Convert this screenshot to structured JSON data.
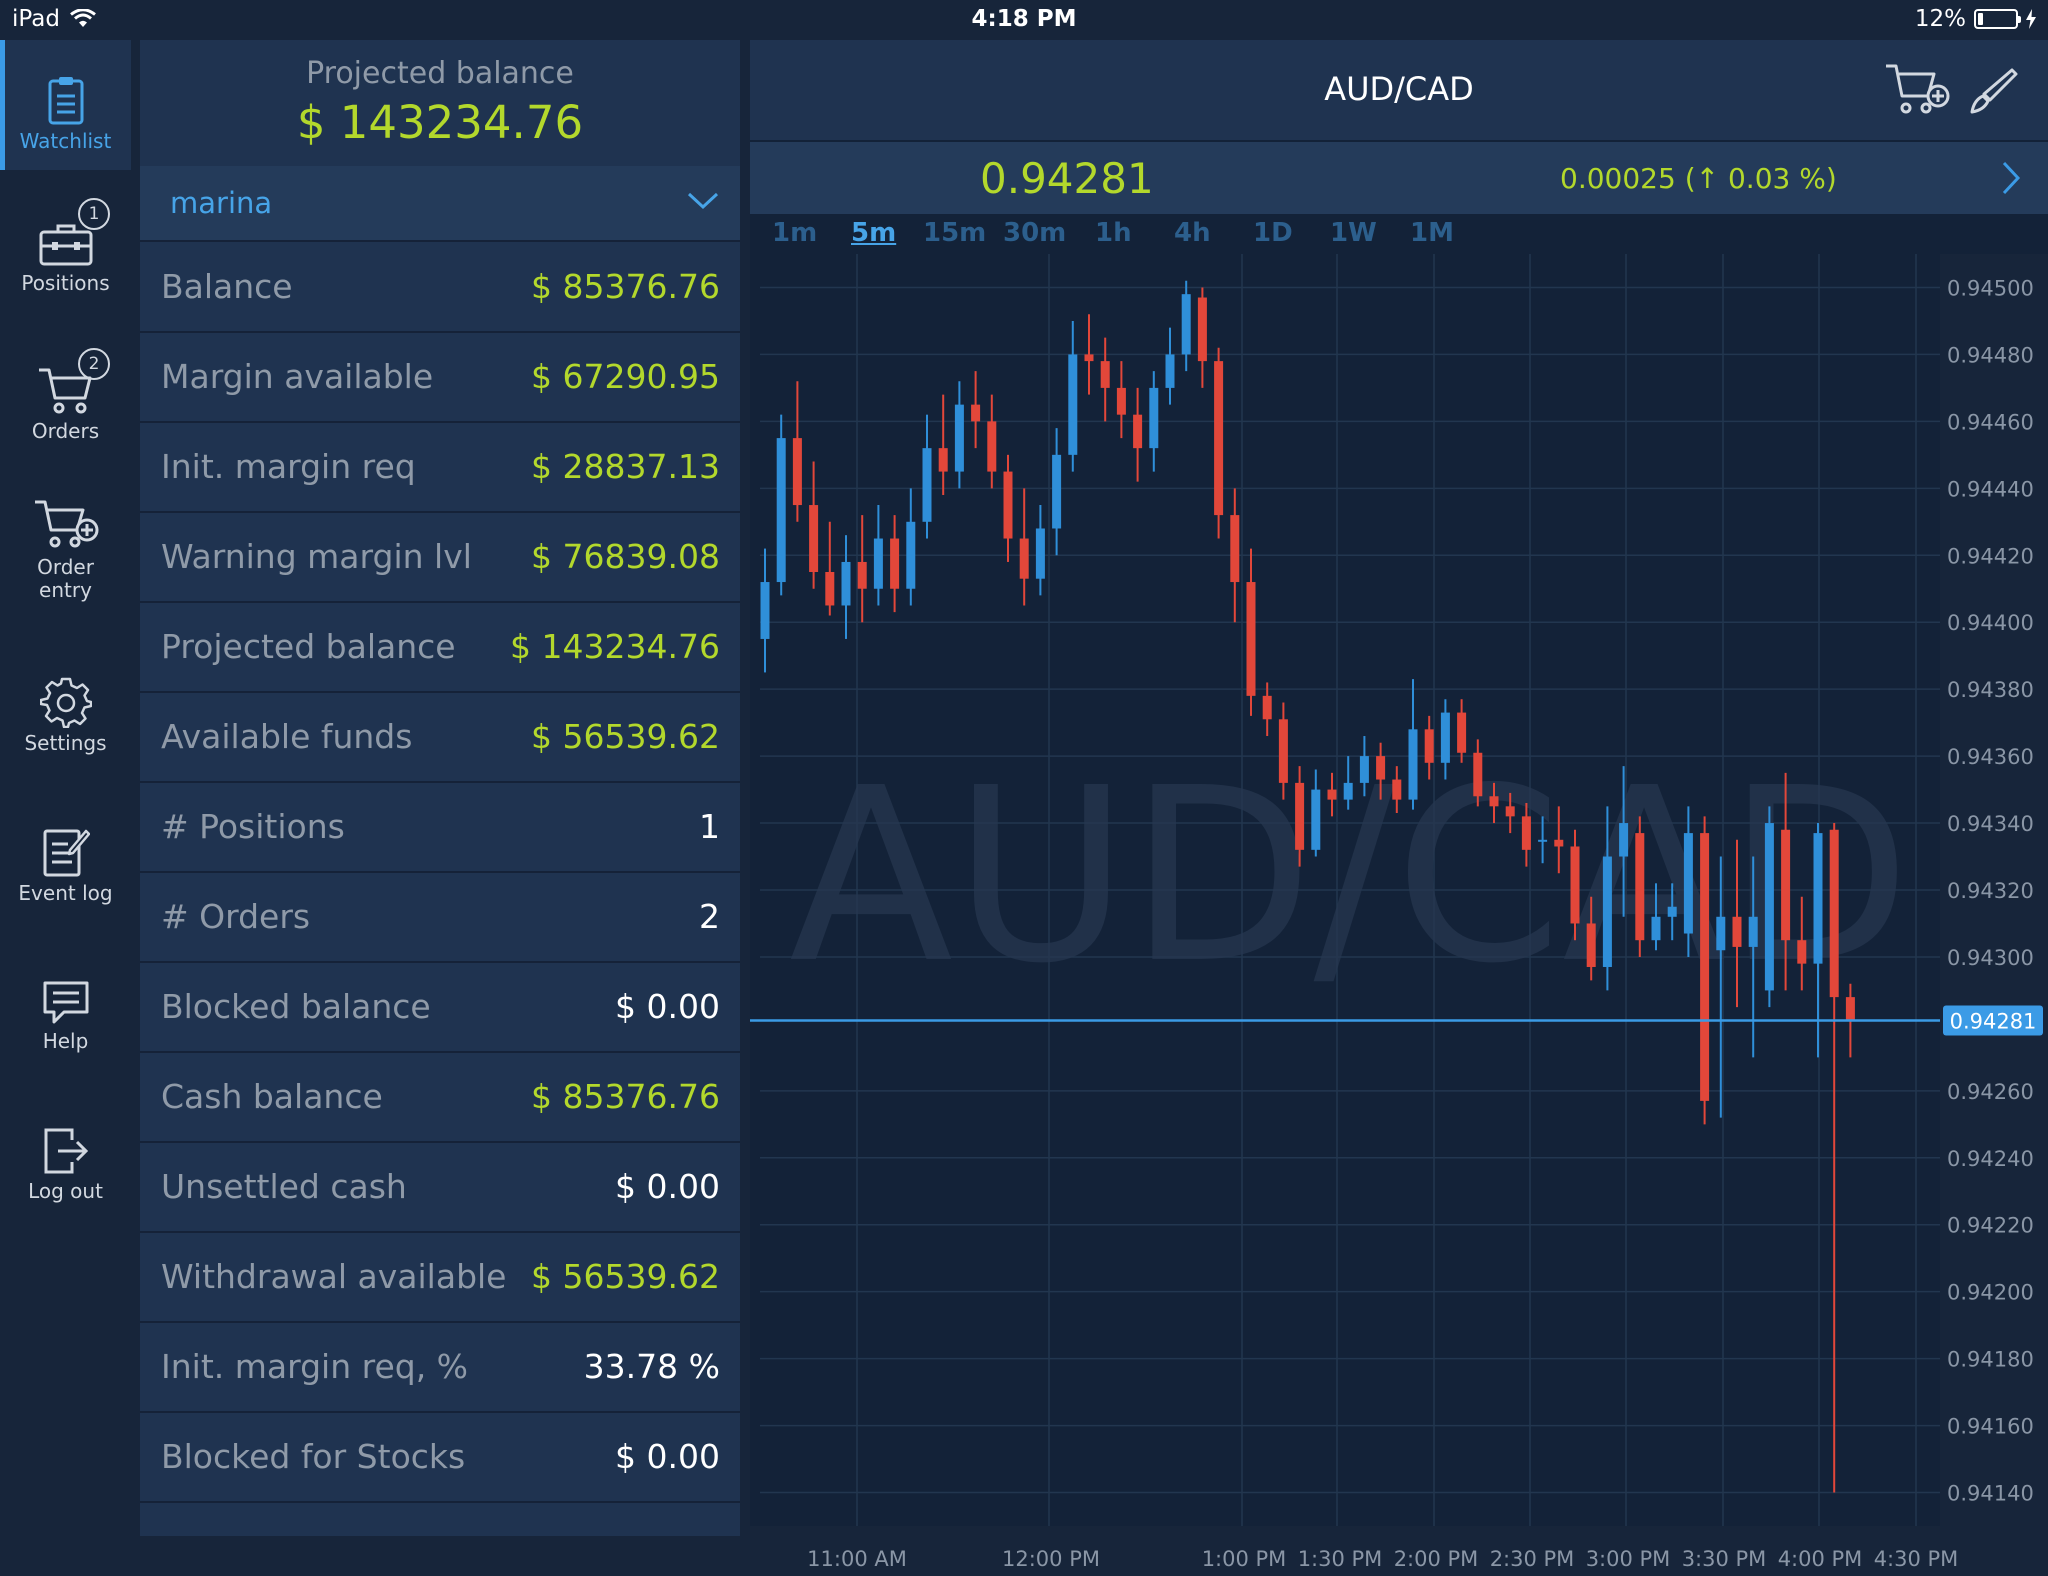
{
  "status_bar": {
    "device": "iPad",
    "time": "4:18 PM",
    "battery": "12%"
  },
  "nav": {
    "watchlist": "Watchlist",
    "positions": "Positions",
    "positions_badge": "1",
    "orders": "Orders",
    "orders_badge": "2",
    "order_entry_1": "Order",
    "order_entry_2": "entry",
    "settings": "Settings",
    "event_log": "Event log",
    "help": "Help",
    "log_out": "Log out"
  },
  "account": {
    "header_label": "Projected balance",
    "header_value": "$ 143234.76",
    "selected_account": "marina",
    "rows": [
      {
        "label": "Balance",
        "value": "$ 85376.76",
        "color": "green"
      },
      {
        "label": "Margin available",
        "value": "$ 67290.95",
        "color": "green"
      },
      {
        "label": "Init. margin req",
        "value": "$ 28837.13",
        "color": "green"
      },
      {
        "label": "Warning margin lvl",
        "value": "$ 76839.08",
        "color": "green"
      },
      {
        "label": "Projected balance",
        "value": "$ 143234.76",
        "color": "green"
      },
      {
        "label": "Available funds",
        "value": "$ 56539.62",
        "color": "green"
      },
      {
        "label": "# Positions",
        "value": "1",
        "color": "white"
      },
      {
        "label": "# Orders",
        "value": "2",
        "color": "white"
      },
      {
        "label": "Blocked balance",
        "value": "$ 0.00",
        "color": "white"
      },
      {
        "label": "Cash balance",
        "value": "$ 85376.76",
        "color": "green"
      },
      {
        "label": "Unsettled cash",
        "value": "$ 0.00",
        "color": "white"
      },
      {
        "label": "Withdrawal available",
        "value": "$ 56539.62",
        "color": "green"
      },
      {
        "label": "Init. margin req, %",
        "value": "33.78 %",
        "color": "white"
      },
      {
        "label": "Blocked for Stocks",
        "value": "$ 0.00",
        "color": "white"
      }
    ]
  },
  "chart": {
    "title": "AUD/CAD",
    "price": "0.94281",
    "change": "0.00025 (↑ 0.03 %)",
    "timeframes": [
      "1m",
      "5m",
      "15m",
      "30m",
      "1h",
      "4h",
      "1D",
      "1W",
      "1M"
    ],
    "active_timeframe": "5m",
    "watermark": "AUD/CAD"
  },
  "colors": {
    "up": "#2f8fd9",
    "down": "#e2473a",
    "accent": "#47a4e8",
    "green_value": "#b3d82c",
    "current_price_line": "#3b9be6"
  },
  "chart_data": {
    "type": "candlestick",
    "symbol": "AUD/CAD",
    "interval": "5m",
    "current_price": 0.94281,
    "ylim": [
      0.9413,
      0.9451
    ],
    "y_ticks": [
      "0.94500",
      "0.94480",
      "0.94460",
      "0.94440",
      "0.94420",
      "0.94400",
      "0.94380",
      "0.94360",
      "0.94340",
      "0.94320",
      "0.94300",
      "0.94260",
      "0.94240",
      "0.94220",
      "0.94200",
      "0.94180",
      "0.94160",
      "0.94140"
    ],
    "x_ticks": [
      "11:00 AM",
      "12:00 PM",
      "1:00 PM",
      "1:30 PM",
      "2:00 PM",
      "2:30 PM",
      "3:00 PM",
      "3:30 PM",
      "4:00 PM",
      "4:30 PM"
    ],
    "candles": [
      [
        0.94395,
        0.94412,
        0.94385,
        0.94422
      ],
      [
        0.94412,
        0.94455,
        0.94408,
        0.94462
      ],
      [
        0.94455,
        0.94435,
        0.9443,
        0.94472
      ],
      [
        0.94435,
        0.94415,
        0.9441,
        0.94448
      ],
      [
        0.94415,
        0.94405,
        0.94402,
        0.9443
      ],
      [
        0.94405,
        0.94418,
        0.94395,
        0.94426
      ],
      [
        0.94418,
        0.9441,
        0.944,
        0.94432
      ],
      [
        0.9441,
        0.94425,
        0.94405,
        0.94435
      ],
      [
        0.94425,
        0.9441,
        0.94403,
        0.94432
      ],
      [
        0.9441,
        0.9443,
        0.94405,
        0.9444
      ],
      [
        0.9443,
        0.94452,
        0.94425,
        0.94462
      ],
      [
        0.94452,
        0.94445,
        0.94438,
        0.94468
      ],
      [
        0.94445,
        0.94465,
        0.9444,
        0.94472
      ],
      [
        0.94465,
        0.9446,
        0.94452,
        0.94475
      ],
      [
        0.9446,
        0.94445,
        0.9444,
        0.94468
      ],
      [
        0.94445,
        0.94425,
        0.94418,
        0.9445
      ],
      [
        0.94425,
        0.94413,
        0.94405,
        0.9444
      ],
      [
        0.94413,
        0.94428,
        0.94408,
        0.94435
      ],
      [
        0.94428,
        0.9445,
        0.9442,
        0.94458
      ],
      [
        0.9445,
        0.9448,
        0.94445,
        0.9449
      ],
      [
        0.9448,
        0.94478,
        0.94468,
        0.94492
      ],
      [
        0.94478,
        0.9447,
        0.9446,
        0.94485
      ],
      [
        0.9447,
        0.94462,
        0.94455,
        0.94478
      ],
      [
        0.94462,
        0.94452,
        0.94442,
        0.9447
      ],
      [
        0.94452,
        0.9447,
        0.94445,
        0.94475
      ],
      [
        0.9447,
        0.9448,
        0.94465,
        0.94488
      ],
      [
        0.9448,
        0.94498,
        0.94475,
        0.94502
      ],
      [
        0.94497,
        0.94478,
        0.9447,
        0.945
      ],
      [
        0.94478,
        0.94432,
        0.94425,
        0.94482
      ],
      [
        0.94432,
        0.94412,
        0.944,
        0.9444
      ],
      [
        0.94412,
        0.94378,
        0.94372,
        0.94422
      ],
      [
        0.94378,
        0.94371,
        0.94366,
        0.94382
      ],
      [
        0.94371,
        0.94352,
        0.94347,
        0.94376
      ],
      [
        0.94352,
        0.94332,
        0.94327,
        0.94357
      ],
      [
        0.94332,
        0.9435,
        0.9433,
        0.94356
      ],
      [
        0.9435,
        0.94347,
        0.94342,
        0.94355
      ],
      [
        0.94347,
        0.94352,
        0.94344,
        0.9436
      ],
      [
        0.94352,
        0.9436,
        0.94348,
        0.94366
      ],
      [
        0.9436,
        0.94353,
        0.94347,
        0.94364
      ],
      [
        0.94353,
        0.94347,
        0.94343,
        0.94357
      ],
      [
        0.94347,
        0.94368,
        0.94344,
        0.94383
      ],
      [
        0.94368,
        0.94358,
        0.94353,
        0.94372
      ],
      [
        0.94358,
        0.94373,
        0.94353,
        0.94377
      ],
      [
        0.94373,
        0.94361,
        0.94358,
        0.94377
      ],
      [
        0.94361,
        0.94348,
        0.94345,
        0.94365
      ],
      [
        0.94348,
        0.94345,
        0.9434,
        0.94352
      ],
      [
        0.94345,
        0.94342,
        0.94337,
        0.94349
      ],
      [
        0.94342,
        0.94332,
        0.94327,
        0.94346
      ],
      [
        0.94335,
        0.94335,
        0.94328,
        0.94342
      ],
      [
        0.94335,
        0.94333,
        0.94325,
        0.94345
      ],
      [
        0.94333,
        0.9431,
        0.94305,
        0.94338
      ],
      [
        0.9431,
        0.94297,
        0.94293,
        0.94318
      ],
      [
        0.94297,
        0.9433,
        0.9429,
        0.94345
      ],
      [
        0.9433,
        0.9434,
        0.94312,
        0.94357
      ],
      [
        0.94337,
        0.94305,
        0.943,
        0.94342
      ],
      [
        0.94305,
        0.94312,
        0.94302,
        0.94322
      ],
      [
        0.94312,
        0.94315,
        0.94305,
        0.94322
      ],
      [
        0.94307,
        0.94337,
        0.943,
        0.94345
      ],
      [
        0.94337,
        0.94257,
        0.9425,
        0.94342
      ],
      [
        0.94302,
        0.94312,
        0.94252,
        0.9433
      ],
      [
        0.94312,
        0.94303,
        0.94285,
        0.94335
      ],
      [
        0.94303,
        0.94312,
        0.9427,
        0.9433
      ],
      [
        0.9429,
        0.9434,
        0.94285,
        0.94345
      ],
      [
        0.94338,
        0.94305,
        0.9429,
        0.94355
      ],
      [
        0.94305,
        0.94298,
        0.9429,
        0.94318
      ],
      [
        0.94298,
        0.94337,
        0.9427,
        0.9434
      ],
      [
        0.94338,
        0.94288,
        0.9414,
        0.9434
      ],
      [
        0.94288,
        0.94281,
        0.9427,
        0.94292
      ]
    ]
  }
}
